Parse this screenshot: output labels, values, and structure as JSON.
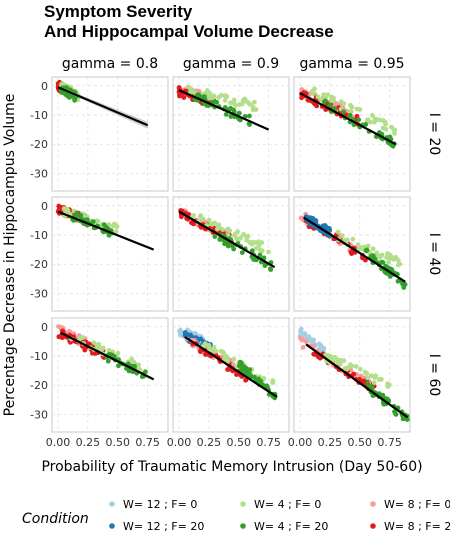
{
  "chart_data": {
    "type": "scatter",
    "title_lines": [
      "Symptom Severity",
      "And Hippocampal Volume Decrease"
    ],
    "xlabel": "Probability of Traumatic Memory Intrusion (Day 50-60)",
    "ylabel": "Percentage Decrease in Hippocampus Volume",
    "column_facets": [
      "gamma = 0.8",
      "gamma = 0.9",
      "gamma = 0.95"
    ],
    "row_facets": [
      "I = 20",
      "I = 40",
      "I = 60"
    ],
    "xlim": [
      -0.05,
      0.92
    ],
    "ylim": [
      -36,
      3
    ],
    "x_ticks": [
      0,
      0.25,
      0.5,
      0.75
    ],
    "x_tick_labels": [
      "0.00",
      "0.25",
      "0.50",
      "0.75"
    ],
    "y_ticks": [
      0,
      -10,
      -20,
      -30
    ],
    "y_tick_labels": [
      "0",
      "-10",
      "-20",
      "-30"
    ],
    "legend": {
      "title": "Condition",
      "placement": "bottom",
      "entries": [
        {
          "label": "W= 12 ; F= 0",
          "color": "#a6cee3"
        },
        {
          "label": "W= 12 ; F= 20",
          "color": "#1f78b4"
        },
        {
          "label": "W= 4 ; F= 0",
          "color": "#b2df8a"
        },
        {
          "label": "W= 4 ; F= 20",
          "color": "#33a02c"
        },
        {
          "label": "W= 8 ; F= 0",
          "color": "#fb9a99"
        },
        {
          "label": "W= 8 ; F= 20",
          "color": "#e31a1c"
        }
      ]
    },
    "panels": [
      {
        "row": 0,
        "col": 0,
        "fit": {
          "x": [
            0,
            0.75
          ],
          "y": [
            -0.5,
            -13.5
          ]
        },
        "se_band": true,
        "clusters": [
          {
            "series": 4,
            "x": [
              0.0,
              0.12
            ],
            "y": [
              0,
              -3
            ]
          },
          {
            "series": 5,
            "x": [
              0.0,
              0.14
            ],
            "y": [
              0,
              -3
            ]
          },
          {
            "series": 2,
            "x": [
              0.02,
              0.18
            ],
            "y": [
              0,
              -4
            ]
          },
          {
            "series": 3,
            "x": [
              0.02,
              0.16
            ],
            "y": [
              -1,
              -4
            ]
          }
        ]
      },
      {
        "row": 0,
        "col": 1,
        "fit": {
          "x": [
            0,
            0.75
          ],
          "y": [
            -1.5,
            -15
          ]
        },
        "se_band": false,
        "clusters": [
          {
            "series": 4,
            "x": [
              0.0,
              0.3
            ],
            "y": [
              -1,
              -5
            ]
          },
          {
            "series": 5,
            "x": [
              0.0,
              0.3
            ],
            "y": [
              -2,
              -6
            ]
          },
          {
            "series": 2,
            "x": [
              0.05,
              0.65
            ],
            "y": [
              -1,
              -7
            ]
          },
          {
            "series": 3,
            "x": [
              0.1,
              0.6
            ],
            "y": [
              -3,
              -12
            ]
          }
        ]
      },
      {
        "row": 0,
        "col": 2,
        "fit": {
          "x": [
            0,
            0.8
          ],
          "y": [
            -2.5,
            -20
          ]
        },
        "se_band": false,
        "clusters": [
          {
            "series": 4,
            "x": [
              0.0,
              0.45
            ],
            "y": [
              -2,
              -10
            ]
          },
          {
            "series": 5,
            "x": [
              0.0,
              0.5
            ],
            "y": [
              -3,
              -12
            ]
          },
          {
            "series": 2,
            "x": [
              0.1,
              0.8
            ],
            "y": [
              -2,
              -15
            ]
          },
          {
            "series": 3,
            "x": [
              0.2,
              0.8
            ],
            "y": [
              -6,
              -20
            ]
          }
        ]
      },
      {
        "row": 1,
        "col": 0,
        "fit": {
          "x": [
            0,
            0.8
          ],
          "y": [
            -2,
            -15
          ]
        },
        "se_band": false,
        "clusters": [
          {
            "series": 4,
            "x": [
              0.0,
              0.25
            ],
            "y": [
              -1,
              -5
            ]
          },
          {
            "series": 5,
            "x": [
              0.0,
              0.3
            ],
            "y": [
              -1,
              -6
            ]
          },
          {
            "series": 2,
            "x": [
              0.05,
              0.5
            ],
            "y": [
              -2,
              -8
            ]
          },
          {
            "series": 3,
            "x": [
              0.1,
              0.45
            ],
            "y": [
              -3,
              -9
            ]
          }
        ]
      },
      {
        "row": 1,
        "col": 1,
        "fit": {
          "x": [
            0,
            0.8
          ],
          "y": [
            -2,
            -21
          ]
        },
        "se_band": false,
        "clusters": [
          {
            "series": 4,
            "x": [
              0.0,
              0.4
            ],
            "y": [
              -2,
              -10
            ]
          },
          {
            "series": 5,
            "x": [
              0.0,
              0.45
            ],
            "y": [
              -2,
              -12
            ]
          },
          {
            "series": 2,
            "x": [
              0.1,
              0.75
            ],
            "y": [
              -3,
              -15
            ]
          },
          {
            "series": 3,
            "x": [
              0.3,
              0.8
            ],
            "y": [
              -10,
              -21
            ]
          }
        ]
      },
      {
        "row": 1,
        "col": 2,
        "fit": {
          "x": [
            0.03,
            0.88
          ],
          "y": [
            -4,
            -26
          ]
        },
        "se_band": false,
        "clusters": [
          {
            "series": 4,
            "x": [
              0.0,
              0.5
            ],
            "y": [
              -3,
              -16
            ]
          },
          {
            "series": 5,
            "x": [
              0.05,
              0.55
            ],
            "y": [
              -5,
              -18
            ]
          },
          {
            "series": 1,
            "x": [
              0.05,
              0.25
            ],
            "y": [
              -4,
              -9
            ]
          },
          {
            "series": 2,
            "x": [
              0.3,
              0.85
            ],
            "y": [
              -10,
              -20
            ]
          },
          {
            "series": 3,
            "x": [
              0.55,
              0.88
            ],
            "y": [
              -16,
              -27
            ]
          }
        ]
      },
      {
        "row": 2,
        "col": 0,
        "fit": {
          "x": [
            0.02,
            0.8
          ],
          "y": [
            -2,
            -18
          ]
        },
        "se_band": false,
        "clusters": [
          {
            "series": 4,
            "x": [
              0.0,
              0.35
            ],
            "y": [
              -1,
              -8
            ]
          },
          {
            "series": 5,
            "x": [
              0.0,
              0.4
            ],
            "y": [
              -2,
              -10
            ]
          },
          {
            "series": 2,
            "x": [
              0.1,
              0.7
            ],
            "y": [
              -3,
              -14
            ]
          },
          {
            "series": 3,
            "x": [
              0.4,
              0.75
            ],
            "y": [
              -10,
              -17
            ]
          }
        ]
      },
      {
        "row": 2,
        "col": 1,
        "fit": {
          "x": [
            0.05,
            0.82
          ],
          "y": [
            -3.5,
            -24
          ]
        },
        "se_band": false,
        "clusters": [
          {
            "series": 0,
            "x": [
              0.0,
              0.2
            ],
            "y": [
              -1,
              -5
            ]
          },
          {
            "series": 1,
            "x": [
              0.05,
              0.3
            ],
            "y": [
              -3,
              -8
            ]
          },
          {
            "series": 4,
            "x": [
              0.05,
              0.5
            ],
            "y": [
              -4,
              -14
            ]
          },
          {
            "series": 5,
            "x": [
              0.1,
              0.6
            ],
            "y": [
              -6,
              -18
            ]
          },
          {
            "series": 2,
            "x": [
              0.2,
              0.8
            ],
            "y": [
              -6,
              -20
            ]
          },
          {
            "series": 3,
            "x": [
              0.5,
              0.82
            ],
            "y": [
              -13,
              -24
            ]
          }
        ]
      },
      {
        "row": 2,
        "col": 2,
        "fit": {
          "x": [
            0.05,
            0.9
          ],
          "y": [
            -6,
            -31
          ]
        },
        "se_band": false,
        "clusters": [
          {
            "series": 0,
            "x": [
              0.0,
              0.2
            ],
            "y": [
              -2,
              -8
            ]
          },
          {
            "series": 4,
            "x": [
              0.0,
              0.6
            ],
            "y": [
              -5,
              -20
            ]
          },
          {
            "series": 5,
            "x": [
              0.1,
              0.65
            ],
            "y": [
              -8,
              -22
            ]
          },
          {
            "series": 2,
            "x": [
              0.2,
              0.75
            ],
            "y": [
              -10,
              -20
            ]
          },
          {
            "series": 3,
            "x": [
              0.55,
              0.9
            ],
            "y": [
              -20,
              -32
            ]
          }
        ]
      }
    ]
  }
}
